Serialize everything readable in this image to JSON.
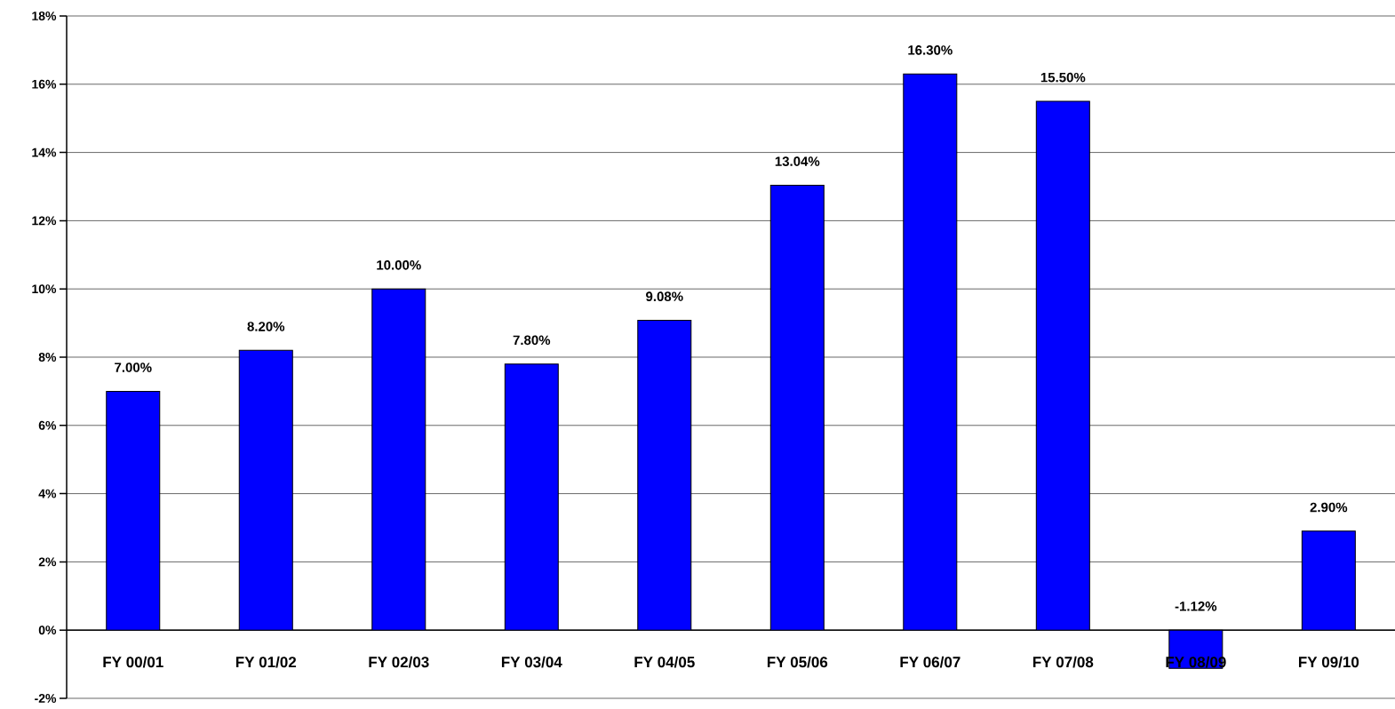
{
  "chart_data": {
    "type": "bar",
    "categories": [
      "FY 00/01",
      "FY 01/02",
      "FY 02/03",
      "FY 03/04",
      "FY 04/05",
      "FY 05/06",
      "FY 06/07",
      "FY 07/08",
      "FY 08/09",
      "FY 09/10"
    ],
    "values": [
      7.0,
      8.2,
      10.0,
      7.8,
      9.08,
      13.04,
      16.3,
      15.5,
      -1.12,
      2.9
    ],
    "value_labels": [
      "7.00%",
      "8.20%",
      "10.00%",
      "7.80%",
      "9.08%",
      "13.04%",
      "16.30%",
      "15.50%",
      "-1.12%",
      "2.90%"
    ],
    "color": "#0000ff",
    "ylim": [
      -2,
      18
    ],
    "yticks": [
      {
        "value": -2,
        "label": "-2%"
      },
      {
        "value": 0,
        "label": "0%"
      },
      {
        "value": 2,
        "label": "2%"
      },
      {
        "value": 4,
        "label": "4%"
      },
      {
        "value": 6,
        "label": "6%"
      },
      {
        "value": 8,
        "label": "8%"
      },
      {
        "value": 10,
        "label": "10%"
      },
      {
        "value": 12,
        "label": "12%"
      },
      {
        "value": 14,
        "label": "14%"
      },
      {
        "value": 16,
        "label": "16%"
      },
      {
        "value": 18,
        "label": "18%"
      }
    ],
    "grid": "y"
  }
}
